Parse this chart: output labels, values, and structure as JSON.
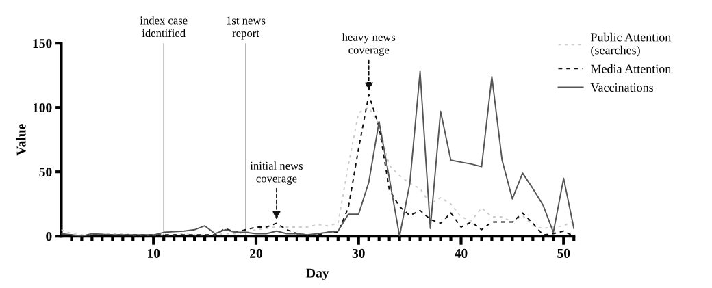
{
  "chart_data": {
    "type": "line",
    "xlabel": "Day",
    "ylabel": "Value",
    "x": [
      1,
      2,
      3,
      4,
      5,
      6,
      7,
      8,
      9,
      10,
      11,
      12,
      13,
      14,
      15,
      16,
      17,
      18,
      19,
      20,
      21,
      22,
      23,
      24,
      25,
      26,
      27,
      28,
      29,
      30,
      31,
      32,
      33,
      34,
      35,
      36,
      37,
      38,
      39,
      40,
      41,
      42,
      43,
      44,
      45,
      46,
      47,
      48,
      49,
      50,
      51
    ],
    "series": [
      {
        "name": "Public Attention\n(searches)",
        "color": "#cccccc",
        "line_style": "dotted",
        "values": [
          5,
          2,
          1,
          1,
          2,
          2,
          2,
          1,
          1,
          1,
          1,
          1,
          2,
          1,
          1,
          1,
          2,
          2,
          3,
          5,
          6,
          7,
          7,
          7,
          7,
          9,
          8,
          10,
          55,
          96,
          100,
          87,
          55,
          47,
          41,
          37,
          25,
          30,
          25,
          15,
          12,
          22,
          15,
          15,
          11,
          16,
          8,
          6,
          7,
          8,
          12
        ]
      },
      {
        "name": "Media Attention",
        "color": "#111111",
        "line_style": "dashed",
        "values": [
          1,
          1,
          0,
          1,
          1,
          1,
          1,
          1,
          1,
          1,
          1,
          1,
          1,
          1,
          1,
          1,
          6,
          3,
          5,
          7,
          7,
          10,
          5,
          2,
          1,
          1,
          3,
          3,
          22,
          68,
          110,
          85,
          36,
          23,
          16,
          20,
          13,
          10,
          18,
          7,
          11,
          5,
          11,
          11,
          11,
          18,
          10,
          1,
          2,
          4,
          0
        ]
      },
      {
        "name": "Vaccinations",
        "color": "#555555",
        "line_style": "solid",
        "values": [
          2,
          1,
          0,
          2,
          1.5,
          1,
          1,
          1,
          1,
          1,
          3,
          3.5,
          4,
          5,
          8,
          2,
          5,
          3,
          3,
          2,
          2,
          4,
          2,
          2,
          1,
          2,
          3,
          4,
          17,
          17,
          42,
          89,
          45,
          0,
          41,
          128,
          6,
          97,
          59,
          57.5,
          56,
          54,
          124,
          59,
          29,
          49,
          37,
          24,
          3,
          45,
          6
        ]
      }
    ],
    "xlim": [
      1,
      51
    ],
    "xticks": [
      {
        "value": 2,
        "label": null
      },
      {
        "value": 3,
        "label": null
      },
      {
        "value": 4,
        "label": null
      },
      {
        "value": 5,
        "label": null
      },
      {
        "value": 6,
        "label": null
      },
      {
        "value": 7,
        "label": null
      },
      {
        "value": 8,
        "label": null
      },
      {
        "value": 9,
        "label": null
      },
      10,
      {
        "value": 11,
        "label": null
      },
      {
        "value": 12,
        "label": null
      },
      {
        "value": 13,
        "label": null
      },
      {
        "value": 14,
        "label": null
      },
      {
        "value": 15,
        "label": null
      },
      {
        "value": 16,
        "label": null
      },
      {
        "value": 17,
        "label": null
      },
      {
        "value": 18,
        "label": null
      },
      {
        "value": 19,
        "label": null
      },
      20,
      {
        "value": 21,
        "label": null
      },
      {
        "value": 22,
        "label": null
      },
      {
        "value": 23,
        "label": null
      },
      {
        "value": 24,
        "label": null
      },
      {
        "value": 25,
        "label": null
      },
      {
        "value": 26,
        "label": null
      },
      {
        "value": 27,
        "label": null
      },
      {
        "value": 28,
        "label": null
      },
      {
        "value": 29,
        "label": null
      },
      30,
      {
        "value": 31,
        "label": null
      },
      {
        "value": 32,
        "label": null
      },
      {
        "value": 33,
        "label": null
      },
      {
        "value": 34,
        "label": null
      },
      {
        "value": 35,
        "label": null
      },
      {
        "value": 36,
        "label": null
      },
      {
        "value": 37,
        "label": null
      },
      {
        "value": 38,
        "label": null
      },
      {
        "value": 39,
        "label": null
      },
      40,
      {
        "value": 41,
        "label": null
      },
      {
        "value": 42,
        "label": null
      },
      {
        "value": 43,
        "label": null
      },
      {
        "value": 44,
        "label": null
      },
      {
        "value": 45,
        "label": null
      },
      {
        "value": 46,
        "label": null
      },
      {
        "value": 47,
        "label": null
      },
      {
        "value": 48,
        "label": null
      },
      {
        "value": 49,
        "label": null
      },
      50,
      {
        "value": 51,
        "label": null
      }
    ],
    "ylim": [
      0,
      150
    ],
    "yticks": [
      0,
      50,
      100,
      150
    ],
    "ref_lines": [
      {
        "axis": "x",
        "value": 11,
        "label": "index case\nidentified",
        "color": "#aaaaaa"
      },
      {
        "axis": "x",
        "value": 19,
        "label": "1st news\nreport",
        "color": "#aaaaaa"
      }
    ],
    "annotations": [
      {
        "text": "initial news\ncoverage",
        "x": 22,
        "y": 10
      },
      {
        "text": "heavy news\ncoverage",
        "x": 31,
        "y": 110
      }
    ],
    "grid": false,
    "legend": "right",
    "marker": "none"
  }
}
